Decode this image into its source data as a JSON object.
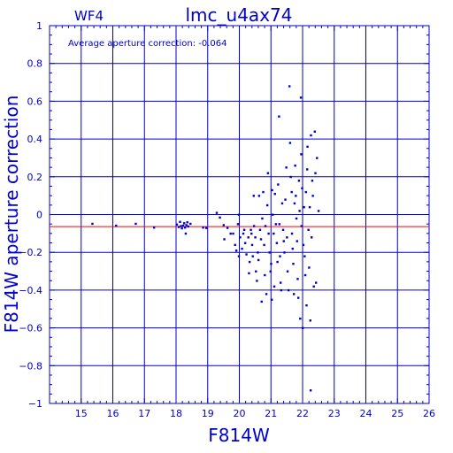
{
  "chart_data": {
    "type": "scatter",
    "title": "lmc_u4ax74",
    "subtitle": "WF4",
    "xlabel": "F814W",
    "ylabel": "F814W aperture correction",
    "annotation": "Average aperture correction: -0.064",
    "xlim": [
      14,
      26
    ],
    "ylim": [
      -1,
      1
    ],
    "x_ticks": [
      15,
      16,
      17,
      18,
      19,
      20,
      21,
      22,
      23,
      24,
      25,
      26
    ],
    "y_ticks": [
      -1,
      -0.8,
      -0.6,
      -0.4,
      -0.2,
      0,
      0.2,
      0.4,
      0.6,
      0.8,
      1
    ],
    "y_tick_labels": [
      "−1",
      "−0.8",
      "−0.6",
      "−0.4",
      "−0.2",
      "0",
      "0.2",
      "0.4",
      "0.6",
      "0.8",
      "1"
    ],
    "grid": true,
    "reference_line": {
      "y": -0.064,
      "color": "#ff0000"
    },
    "colors": {
      "axes": "#0000cc",
      "points": "#0000cc",
      "reference": "#ff0000",
      "background": "#ffffff"
    },
    "points": [
      [
        15.35,
        -0.048
      ],
      [
        16.1,
        -0.058
      ],
      [
        16.72,
        -0.048
      ],
      [
        17.3,
        -0.068
      ],
      [
        18.02,
        -0.052
      ],
      [
        18.08,
        -0.065
      ],
      [
        18.12,
        -0.038
      ],
      [
        18.15,
        -0.06
      ],
      [
        18.18,
        -0.072
      ],
      [
        18.22,
        -0.058
      ],
      [
        18.25,
        -0.045
      ],
      [
        18.28,
        -0.068
      ],
      [
        18.32,
        -0.055
      ],
      [
        18.35,
        -0.04
      ],
      [
        18.38,
        -0.062
      ],
      [
        18.3,
        -0.1
      ],
      [
        18.45,
        -0.048
      ],
      [
        18.85,
        -0.068
      ],
      [
        18.95,
        -0.07
      ],
      [
        19.28,
        0.01
      ],
      [
        19.38,
        -0.015
      ],
      [
        19.5,
        -0.055
      ],
      [
        19.52,
        -0.13
      ],
      [
        19.62,
        -0.07
      ],
      [
        19.72,
        -0.1
      ],
      [
        19.8,
        -0.1
      ],
      [
        19.86,
        -0.16
      ],
      [
        19.9,
        -0.19
      ],
      [
        19.95,
        -0.05
      ],
      [
        19.98,
        -0.22
      ],
      [
        19.98,
        0.0
      ],
      [
        20.02,
        -0.12
      ],
      [
        20.08,
        -0.18
      ],
      [
        20.12,
        -0.1
      ],
      [
        20.15,
        -0.08
      ],
      [
        20.18,
        -0.15
      ],
      [
        20.22,
        -0.21
      ],
      [
        20.28,
        -0.12
      ],
      [
        20.3,
        -0.31
      ],
      [
        20.32,
        -0.25
      ],
      [
        20.36,
        -0.08
      ],
      [
        20.38,
        -0.1
      ],
      [
        20.4,
        -0.16
      ],
      [
        20.42,
        -0.22
      ],
      [
        20.45,
        0.1
      ],
      [
        20.46,
        -0.06
      ],
      [
        20.5,
        -0.12
      ],
      [
        20.52,
        -0.3
      ],
      [
        20.55,
        -0.35
      ],
      [
        20.58,
        -0.2
      ],
      [
        20.6,
        -0.24
      ],
      [
        20.62,
        0.1
      ],
      [
        20.65,
        -0.08
      ],
      [
        20.68,
        -0.13
      ],
      [
        20.7,
        -0.46
      ],
      [
        20.72,
        -0.02
      ],
      [
        20.75,
        0.12
      ],
      [
        20.78,
        -0.16
      ],
      [
        20.8,
        -0.32
      ],
      [
        20.82,
        -0.06
      ],
      [
        20.85,
        -0.42
      ],
      [
        20.88,
        0.05
      ],
      [
        20.9,
        0.22
      ],
      [
        20.92,
        -0.1
      ],
      [
        20.95,
        -0.2
      ],
      [
        20.98,
        -0.3
      ],
      [
        21.0,
        -0.26
      ],
      [
        21.02,
        -0.45
      ],
      [
        21.03,
        0.13
      ],
      [
        21.05,
        0.0
      ],
      [
        21.08,
        -0.1
      ],
      [
        21.1,
        -0.38
      ],
      [
        21.12,
        0.11
      ],
      [
        21.15,
        -0.05
      ],
      [
        21.18,
        -0.15
      ],
      [
        21.2,
        -0.25
      ],
      [
        21.22,
        0.16
      ],
      [
        21.25,
        0.52
      ],
      [
        21.26,
        -0.05
      ],
      [
        21.28,
        -0.22
      ],
      [
        21.3,
        -0.36
      ],
      [
        21.32,
        -0.4
      ],
      [
        21.35,
        0.06
      ],
      [
        21.38,
        -0.08
      ],
      [
        21.4,
        -0.14
      ],
      [
        21.42,
        -0.2
      ],
      [
        21.45,
        0.08
      ],
      [
        21.48,
        0.25
      ],
      [
        21.5,
        -0.12
      ],
      [
        21.52,
        -0.3
      ],
      [
        21.55,
        -0.4
      ],
      [
        21.58,
        0.68
      ],
      [
        21.6,
        0.38
      ],
      [
        21.62,
        0.2
      ],
      [
        21.65,
        0.12
      ],
      [
        21.66,
        -0.1
      ],
      [
        21.68,
        -0.18
      ],
      [
        21.7,
        -0.26
      ],
      [
        21.72,
        -0.42
      ],
      [
        21.74,
        0.06
      ],
      [
        21.76,
        0.26
      ],
      [
        21.78,
        0.1
      ],
      [
        21.8,
        -0.02
      ],
      [
        21.82,
        -0.14
      ],
      [
        21.84,
        -0.34
      ],
      [
        21.86,
        -0.44
      ],
      [
        21.88,
        0.18
      ],
      [
        21.9,
        0.02
      ],
      [
        21.92,
        -0.55
      ],
      [
        21.94,
        0.62
      ],
      [
        21.95,
        0.32
      ],
      [
        21.96,
        -0.06
      ],
      [
        21.98,
        0.14
      ],
      [
        22.0,
        -0.6
      ],
      [
        22.02,
        -0.16
      ],
      [
        22.04,
        0.04
      ],
      [
        22.06,
        -0.22
      ],
      [
        22.08,
        -0.32
      ],
      [
        22.1,
        0.12
      ],
      [
        22.12,
        -0.48
      ],
      [
        22.14,
        0.24
      ],
      [
        22.15,
        0.36
      ],
      [
        22.18,
        -0.08
      ],
      [
        22.2,
        -0.28
      ],
      [
        22.22,
        0.04
      ],
      [
        22.24,
        -0.56
      ],
      [
        22.25,
        -0.93
      ],
      [
        22.26,
        0.42
      ],
      [
        22.28,
        -0.12
      ],
      [
        22.3,
        0.18
      ],
      [
        22.32,
        0.1
      ],
      [
        22.35,
        -0.38
      ],
      [
        22.38,
        0.44
      ],
      [
        22.4,
        0.22
      ],
      [
        22.42,
        -0.36
      ],
      [
        22.45,
        0.3
      ],
      [
        22.5,
        0.02
      ]
    ]
  }
}
